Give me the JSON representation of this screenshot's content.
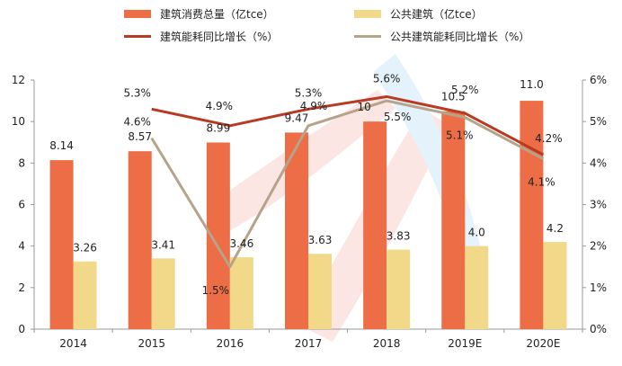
{
  "chart_data": {
    "type": "bar+line",
    "categories": [
      "2014",
      "2015",
      "2016",
      "2017",
      "2018",
      "2019E",
      "2020E"
    ],
    "series": [
      {
        "name": "建筑消费总量（亿tce）",
        "type": "bar",
        "axis": "left",
        "color": "#ED6D47",
        "values": [
          8.14,
          8.57,
          8.99,
          9.47,
          10.0,
          10.5,
          11.0
        ],
        "labels": [
          "8.14",
          "8.57",
          "8.99",
          "9.47",
          "10",
          "10.5",
          "11.0"
        ]
      },
      {
        "name": "公共建筑（亿tce）",
        "type": "bar",
        "axis": "left",
        "color": "#F2D98A",
        "values": [
          3.26,
          3.41,
          3.46,
          3.63,
          3.83,
          4.0,
          4.2
        ],
        "labels": [
          "3.26",
          "3.41",
          "3.46",
          "3.63",
          "3.83",
          "4.0",
          "4.2"
        ]
      },
      {
        "name": "建筑能耗同比增长（%）",
        "type": "line",
        "axis": "right",
        "color": "#B83A22",
        "values": [
          null,
          5.3,
          4.9,
          5.3,
          5.6,
          5.2,
          4.2
        ],
        "labels": [
          "",
          "5.3%",
          "4.9%",
          "5.3%",
          "5.6%",
          "5.2%",
          "4.2%"
        ]
      },
      {
        "name": "公共建筑能耗同比增长（%）",
        "type": "line",
        "axis": "right",
        "color": "#B5A48A",
        "values": [
          null,
          4.6,
          1.5,
          4.9,
          5.5,
          5.1,
          4.1
        ],
        "labels": [
          "",
          "4.6%",
          "1.5%",
          "4.9%",
          "5.5%",
          "5.1%",
          "4.1%"
        ]
      }
    ],
    "y_left": {
      "min": 0,
      "max": 12,
      "ticks": [
        "0",
        "2",
        "4",
        "6",
        "8",
        "10",
        "12"
      ]
    },
    "y_right": {
      "min": 0,
      "max": 6,
      "ticks": [
        "0%",
        "1%",
        "2%",
        "3%",
        "4%",
        "5%",
        "6%"
      ]
    },
    "legend_position": "top"
  }
}
